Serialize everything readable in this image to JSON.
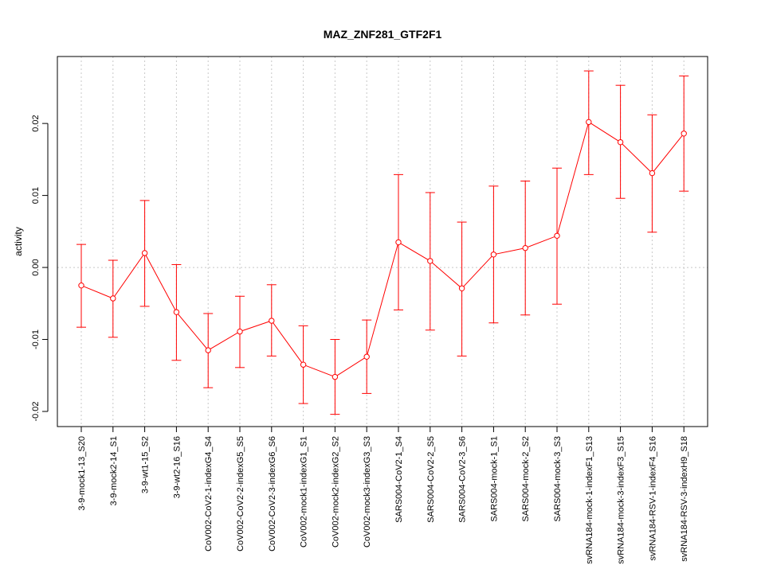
{
  "chart_data": {
    "type": "line",
    "title": "MAZ_ZNF281_GTF2F1",
    "xlabel": "",
    "ylabel": "activity",
    "ylim": [
      -0.0221,
      0.0293
    ],
    "yticks": [
      -0.02,
      -0.01,
      0.0,
      0.01,
      0.02
    ],
    "ytick_labels": [
      "-0.02",
      "-0.01",
      "0.00",
      "0.01",
      "0.02"
    ],
    "grid": true,
    "line_color": "#ff0000",
    "grid_color": "#c8c8c8",
    "categories": [
      "3-9-mock1-13_S20",
      "3-9-mock2-14_S1",
      "3-9-wt1-15_S2",
      "3-9-wt2-16_S16",
      "CoV002-CoV2-1-indexG4_S4",
      "CoV002-CoV2-2-indexG5_S5",
      "CoV002-CoV2-3-indexG6_S6",
      "CoV002-mock1-indexG1_S1",
      "CoV002-mock2-indexG2_S2",
      "CoV002-mock3-indexG3_S3",
      "SARS004-CoV2-1_S4",
      "SARS004-CoV2-2_S5",
      "SARS004-CoV2-3_S6",
      "SARS004-mock-1_S1",
      "SARS004-mock-2_S2",
      "SARS004-mock-3_S3",
      "svRNA184-mock-1-indexF1_S13",
      "svRNA184-mock-3-indexF3_S15",
      "svRNA184-RSV-1-indexF4_S16",
      "svRNA184-RSV-3-indexH9_S18"
    ],
    "series": [
      {
        "values": [
          -0.0025,
          -0.0043,
          0.002,
          -0.0062,
          -0.0115,
          -0.0089,
          -0.0074,
          -0.0135,
          -0.0152,
          -0.0124,
          0.0035,
          0.0009,
          -0.0029,
          0.0018,
          0.0027,
          0.0044,
          0.0202,
          0.0174,
          0.0131,
          0.0186
        ],
        "lower": [
          -0.0083,
          -0.0097,
          -0.0054,
          -0.0129,
          -0.0167,
          -0.0139,
          -0.0123,
          -0.0189,
          -0.0204,
          -0.0175,
          -0.0059,
          -0.0087,
          -0.0123,
          -0.0077,
          -0.0066,
          -0.0051,
          0.0129,
          0.0096,
          0.0049,
          0.0106
        ],
        "upper": [
          0.0032,
          0.001,
          0.0093,
          0.0004,
          -0.0064,
          -0.004,
          -0.0024,
          -0.0081,
          -0.01,
          -0.0073,
          0.0129,
          0.0104,
          0.0063,
          0.0113,
          0.012,
          0.0138,
          0.0273,
          0.0253,
          0.0212,
          0.0266
        ]
      }
    ]
  }
}
